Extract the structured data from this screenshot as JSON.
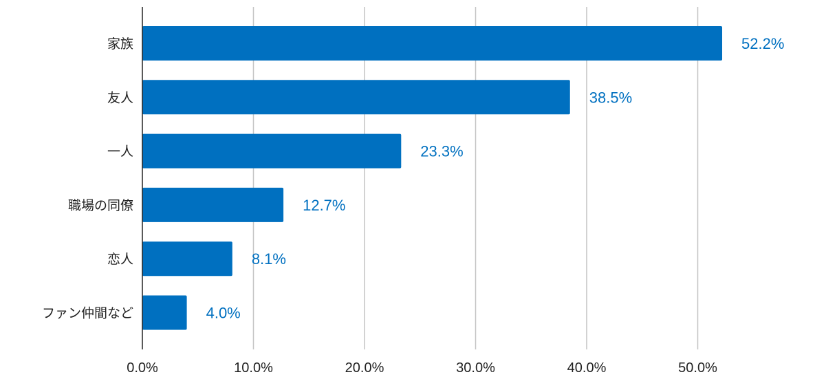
{
  "chart_data": {
    "type": "bar",
    "orientation": "horizontal",
    "categories": [
      "家族",
      "友人",
      "一人",
      "職場の同僚",
      "恋人",
      "ファン仲間など"
    ],
    "values": [
      52.2,
      38.5,
      23.3,
      12.7,
      8.1,
      4.0
    ],
    "value_labels": [
      "52.2%",
      "38.5%",
      "23.3%",
      "12.7%",
      "8.1%",
      "4.0%"
    ],
    "x_ticks": [
      0,
      10,
      20,
      30,
      40,
      50
    ],
    "x_tick_labels": [
      "0.0%",
      "10.0%",
      "20.0%",
      "30.0%",
      "40.0%",
      "50.0%"
    ],
    "xlim": [
      0,
      59
    ],
    "grid": true,
    "legend": "none",
    "colors": {
      "bar": "#0070c0",
      "label": "#0070c0"
    }
  }
}
